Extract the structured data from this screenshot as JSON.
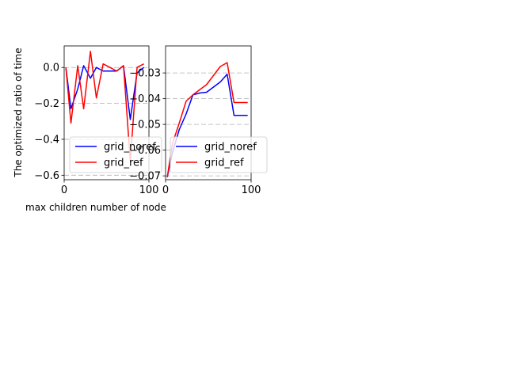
{
  "figure": {
    "ylabel": "The optimized ratio of time",
    "xlabel": "max children number of node"
  },
  "chart_data": [
    {
      "type": "line",
      "xlim": [
        0,
        100
      ],
      "ylim": [
        -0.625,
        0.12
      ],
      "xticks": [
        0,
        100
      ],
      "xtick_labels": [
        "0",
        "100"
      ],
      "yticks": [
        0.0,
        -0.2,
        -0.4,
        -0.6
      ],
      "ytick_labels": [
        "0.0",
        "−0.2",
        "−0.4",
        "−0.6"
      ],
      "grid": "y-dashed",
      "legend_position": "lower-left",
      "series": [
        {
          "name": "grid_noref",
          "color": "#0000ff",
          "x": [
            2,
            8,
            16,
            23,
            31,
            38,
            46,
            54,
            62,
            70,
            78,
            86,
            94
          ],
          "y": [
            0.0,
            -0.23,
            -0.12,
            0.01,
            -0.06,
            0.0,
            -0.02,
            -0.02,
            -0.02,
            0.01,
            -0.29,
            -0.03,
            0.0
          ]
        },
        {
          "name": "grid_ref",
          "color": "#ff0000",
          "x": [
            2,
            8,
            16,
            23,
            31,
            38,
            46,
            54,
            62,
            70,
            78,
            86,
            94
          ],
          "y": [
            0.0,
            -0.31,
            0.01,
            -0.23,
            0.09,
            -0.17,
            0.02,
            0.0,
            -0.02,
            0.01,
            -0.52,
            0.0,
            0.02
          ]
        }
      ]
    },
    {
      "type": "line",
      "xlim": [
        0,
        100
      ],
      "ylim": [
        -0.0715,
        -0.0195
      ],
      "xticks": [
        0,
        100
      ],
      "xtick_labels": [
        "0",
        "100"
      ],
      "yticks": [
        -0.03,
        -0.04,
        -0.05,
        -0.06,
        -0.07
      ],
      "ytick_labels": [
        "−0.03",
        "−0.04",
        "−0.05",
        "−0.06",
        "−0.07"
      ],
      "grid": "y-dashed",
      "legend_position": "lower-right",
      "series": [
        {
          "name": "grid_noref",
          "color": "#0000ff",
          "x": [
            2,
            8,
            16,
            24,
            32,
            40,
            48,
            56,
            64,
            72,
            80,
            88,
            96
          ],
          "y": [
            -0.0705,
            -0.061,
            -0.052,
            -0.046,
            -0.0385,
            -0.0378,
            -0.0375,
            -0.0355,
            -0.0335,
            -0.0305,
            -0.0465,
            -0.0465,
            -0.0465
          ]
        },
        {
          "name": "grid_ref",
          "color": "#ff0000",
          "x": [
            2,
            8,
            16,
            24,
            32,
            40,
            48,
            56,
            64,
            72,
            80,
            88,
            96
          ],
          "y": [
            -0.0705,
            -0.0575,
            -0.0495,
            -0.041,
            -0.0385,
            -0.0365,
            -0.0345,
            -0.031,
            -0.0275,
            -0.026,
            -0.0415,
            -0.0415,
            -0.0415
          ]
        }
      ]
    }
  ]
}
